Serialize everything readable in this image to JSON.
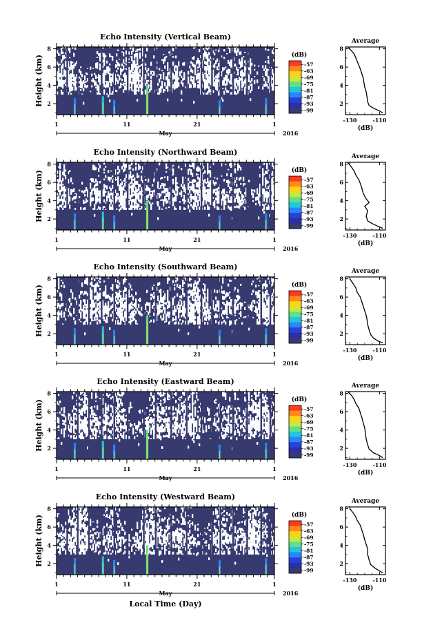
{
  "figure": {
    "xlabel": "Local Time (Day)",
    "month_label": "May",
    "year_label": "2016",
    "colorbar_unit": "(dB)",
    "colorbar_ticks": [
      "-57",
      "-63",
      "-69",
      "-75",
      "-81",
      "-87",
      "-93",
      "-99"
    ],
    "colorbar_colors": [
      "#ff3a1e",
      "#ff8a1a",
      "#ffd21a",
      "#c9e83a",
      "#5fe08c",
      "#22c8d8",
      "#2a86ff",
      "#2742d8",
      "#2c2fa8",
      "#363a6e"
    ],
    "background_color": "#363a6e"
  },
  "chart_data": [
    {
      "type": "heatmap",
      "title": "Echo Intensity (Vertical Beam)",
      "ylabel": "Height (km)",
      "x_tick_labels": [
        "1",
        "11",
        "21",
        "1"
      ],
      "xlim": [
        1,
        32
      ],
      "y_tick_labels": [
        "2",
        "4",
        "6",
        "8"
      ],
      "ylim": [
        0.8,
        8.2
      ],
      "profile": {
        "title": "Average",
        "xlabel": "(dB)",
        "x_tick_labels": [
          "-130",
          "-110"
        ],
        "xlim": [
          -133,
          -106
        ],
        "y_tick_labels": [
          "2",
          "4",
          "6",
          "8"
        ],
        "ylim": [
          0.8,
          8.2
        ],
        "points": [
          [
            -108,
            1.0
          ],
          [
            -110,
            1.2
          ],
          [
            -114,
            1.5
          ],
          [
            -117,
            1.8
          ],
          [
            -118,
            2.2
          ],
          [
            -118.5,
            2.8
          ],
          [
            -119,
            3.3
          ],
          [
            -120,
            3.8
          ],
          [
            -120.5,
            4.3
          ],
          [
            -121,
            4.8
          ],
          [
            -122,
            5.3
          ],
          [
            -123,
            5.8
          ],
          [
            -124,
            6.2
          ],
          [
            -125,
            6.6
          ],
          [
            -126,
            7.0
          ],
          [
            -127,
            7.4
          ],
          [
            -129,
            7.8
          ],
          [
            -131,
            8.1
          ]
        ]
      }
    },
    {
      "type": "heatmap",
      "title": "Echo Intensity (Northward Beam)",
      "ylabel": "Height (km)",
      "x_tick_labels": [
        "1",
        "11",
        "21",
        "1"
      ],
      "xlim": [
        1,
        32
      ],
      "y_tick_labels": [
        "2",
        "4",
        "6",
        "8"
      ],
      "ylim": [
        0.8,
        8.2
      ],
      "profile": {
        "title": "Average",
        "xlabel": "(dB)",
        "x_tick_labels": [
          "-130",
          "-110"
        ],
        "xlim": [
          -133,
          -106
        ],
        "y_tick_labels": [
          "2",
          "4",
          "6",
          "8"
        ],
        "ylim": [
          0.8,
          8.2
        ],
        "points": [
          [
            -108,
            1.0
          ],
          [
            -111,
            1.2
          ],
          [
            -115,
            1.5
          ],
          [
            -118,
            1.8
          ],
          [
            -119,
            2.3
          ],
          [
            -118,
            2.9
          ],
          [
            -120,
            3.4
          ],
          [
            -117,
            3.8
          ],
          [
            -119,
            4.2
          ],
          [
            -121,
            4.8
          ],
          [
            -122,
            5.4
          ],
          [
            -123,
            5.9
          ],
          [
            -124,
            6.3
          ],
          [
            -126,
            6.8
          ],
          [
            -127,
            7.2
          ],
          [
            -129,
            7.7
          ],
          [
            -131,
            8.1
          ]
        ]
      }
    },
    {
      "type": "heatmap",
      "title": "Echo Intensity (Southward Beam)",
      "ylabel": "Height (km)",
      "x_tick_labels": [
        "1",
        "11",
        "21",
        "1"
      ],
      "xlim": [
        1,
        32
      ],
      "y_tick_labels": [
        "2",
        "4",
        "6",
        "8"
      ],
      "ylim": [
        0.8,
        8.2
      ],
      "profile": {
        "title": "Average",
        "xlabel": "(dB)",
        "x_tick_labels": [
          "-130",
          "-110"
        ],
        "xlim": [
          -133,
          -106
        ],
        "y_tick_labels": [
          "2",
          "4",
          "6",
          "8"
        ],
        "ylim": [
          0.8,
          8.2
        ],
        "points": [
          [
            -108,
            1.0
          ],
          [
            -111,
            1.2
          ],
          [
            -114,
            1.5
          ],
          [
            -116,
            1.9
          ],
          [
            -117,
            2.4
          ],
          [
            -118,
            3.0
          ],
          [
            -118.5,
            3.6
          ],
          [
            -119,
            4.0
          ],
          [
            -120,
            4.5
          ],
          [
            -121,
            5.0
          ],
          [
            -122,
            5.5
          ],
          [
            -123,
            6.0
          ],
          [
            -125,
            6.5
          ],
          [
            -126,
            7.0
          ],
          [
            -128,
            7.5
          ],
          [
            -130,
            8.0
          ]
        ]
      }
    },
    {
      "type": "heatmap",
      "title": "Echo Intensity (Eastward Beam)",
      "ylabel": "Height (km)",
      "x_tick_labels": [
        "1",
        "11",
        "21",
        "1"
      ],
      "xlim": [
        1,
        32
      ],
      "y_tick_labels": [
        "2",
        "4",
        "6",
        "8"
      ],
      "ylim": [
        0.8,
        8.2
      ],
      "profile": {
        "title": "Average",
        "xlabel": "(dB)",
        "x_tick_labels": [
          "-130",
          "-110"
        ],
        "xlim": [
          -133,
          -106
        ],
        "y_tick_labels": [
          "2",
          "4",
          "6",
          "8"
        ],
        "ylim": [
          0.8,
          8.2
        ],
        "points": [
          [
            -108,
            1.0
          ],
          [
            -110,
            1.2
          ],
          [
            -114,
            1.5
          ],
          [
            -117,
            1.9
          ],
          [
            -118,
            2.4
          ],
          [
            -119,
            3.0
          ],
          [
            -119.5,
            3.6
          ],
          [
            -120,
            4.2
          ],
          [
            -121,
            4.8
          ],
          [
            -122,
            5.4
          ],
          [
            -123,
            5.9
          ],
          [
            -124,
            6.4
          ],
          [
            -126,
            6.9
          ],
          [
            -127,
            7.3
          ],
          [
            -129,
            7.8
          ],
          [
            -131,
            8.1
          ]
        ]
      }
    },
    {
      "type": "heatmap",
      "title": "Echo Intensity (Westward Beam)",
      "ylabel": "Height (km)",
      "x_tick_labels": [
        "1",
        "11",
        "21",
        "1"
      ],
      "xlim": [
        1,
        32
      ],
      "y_tick_labels": [
        "2",
        "4",
        "6",
        "8"
      ],
      "ylim": [
        0.8,
        8.2
      ],
      "profile": {
        "title": "Average",
        "xlabel": "(dB)",
        "x_tick_labels": [
          "-130",
          "-110"
        ],
        "xlim": [
          -133,
          -106
        ],
        "y_tick_labels": [
          "2",
          "4",
          "6",
          "8"
        ],
        "ylim": [
          0.8,
          8.2
        ],
        "points": [
          [
            -108,
            1.0
          ],
          [
            -110,
            1.2
          ],
          [
            -113,
            1.5
          ],
          [
            -116,
            1.9
          ],
          [
            -117,
            2.4
          ],
          [
            -118,
            3.0
          ],
          [
            -118,
            3.6
          ],
          [
            -119,
            4.1
          ],
          [
            -120,
            4.6
          ],
          [
            -121,
            5.2
          ],
          [
            -122,
            5.7
          ],
          [
            -123,
            6.2
          ],
          [
            -125,
            6.7
          ],
          [
            -126,
            7.1
          ],
          [
            -128,
            7.6
          ],
          [
            -130,
            8.0
          ]
        ]
      }
    }
  ]
}
